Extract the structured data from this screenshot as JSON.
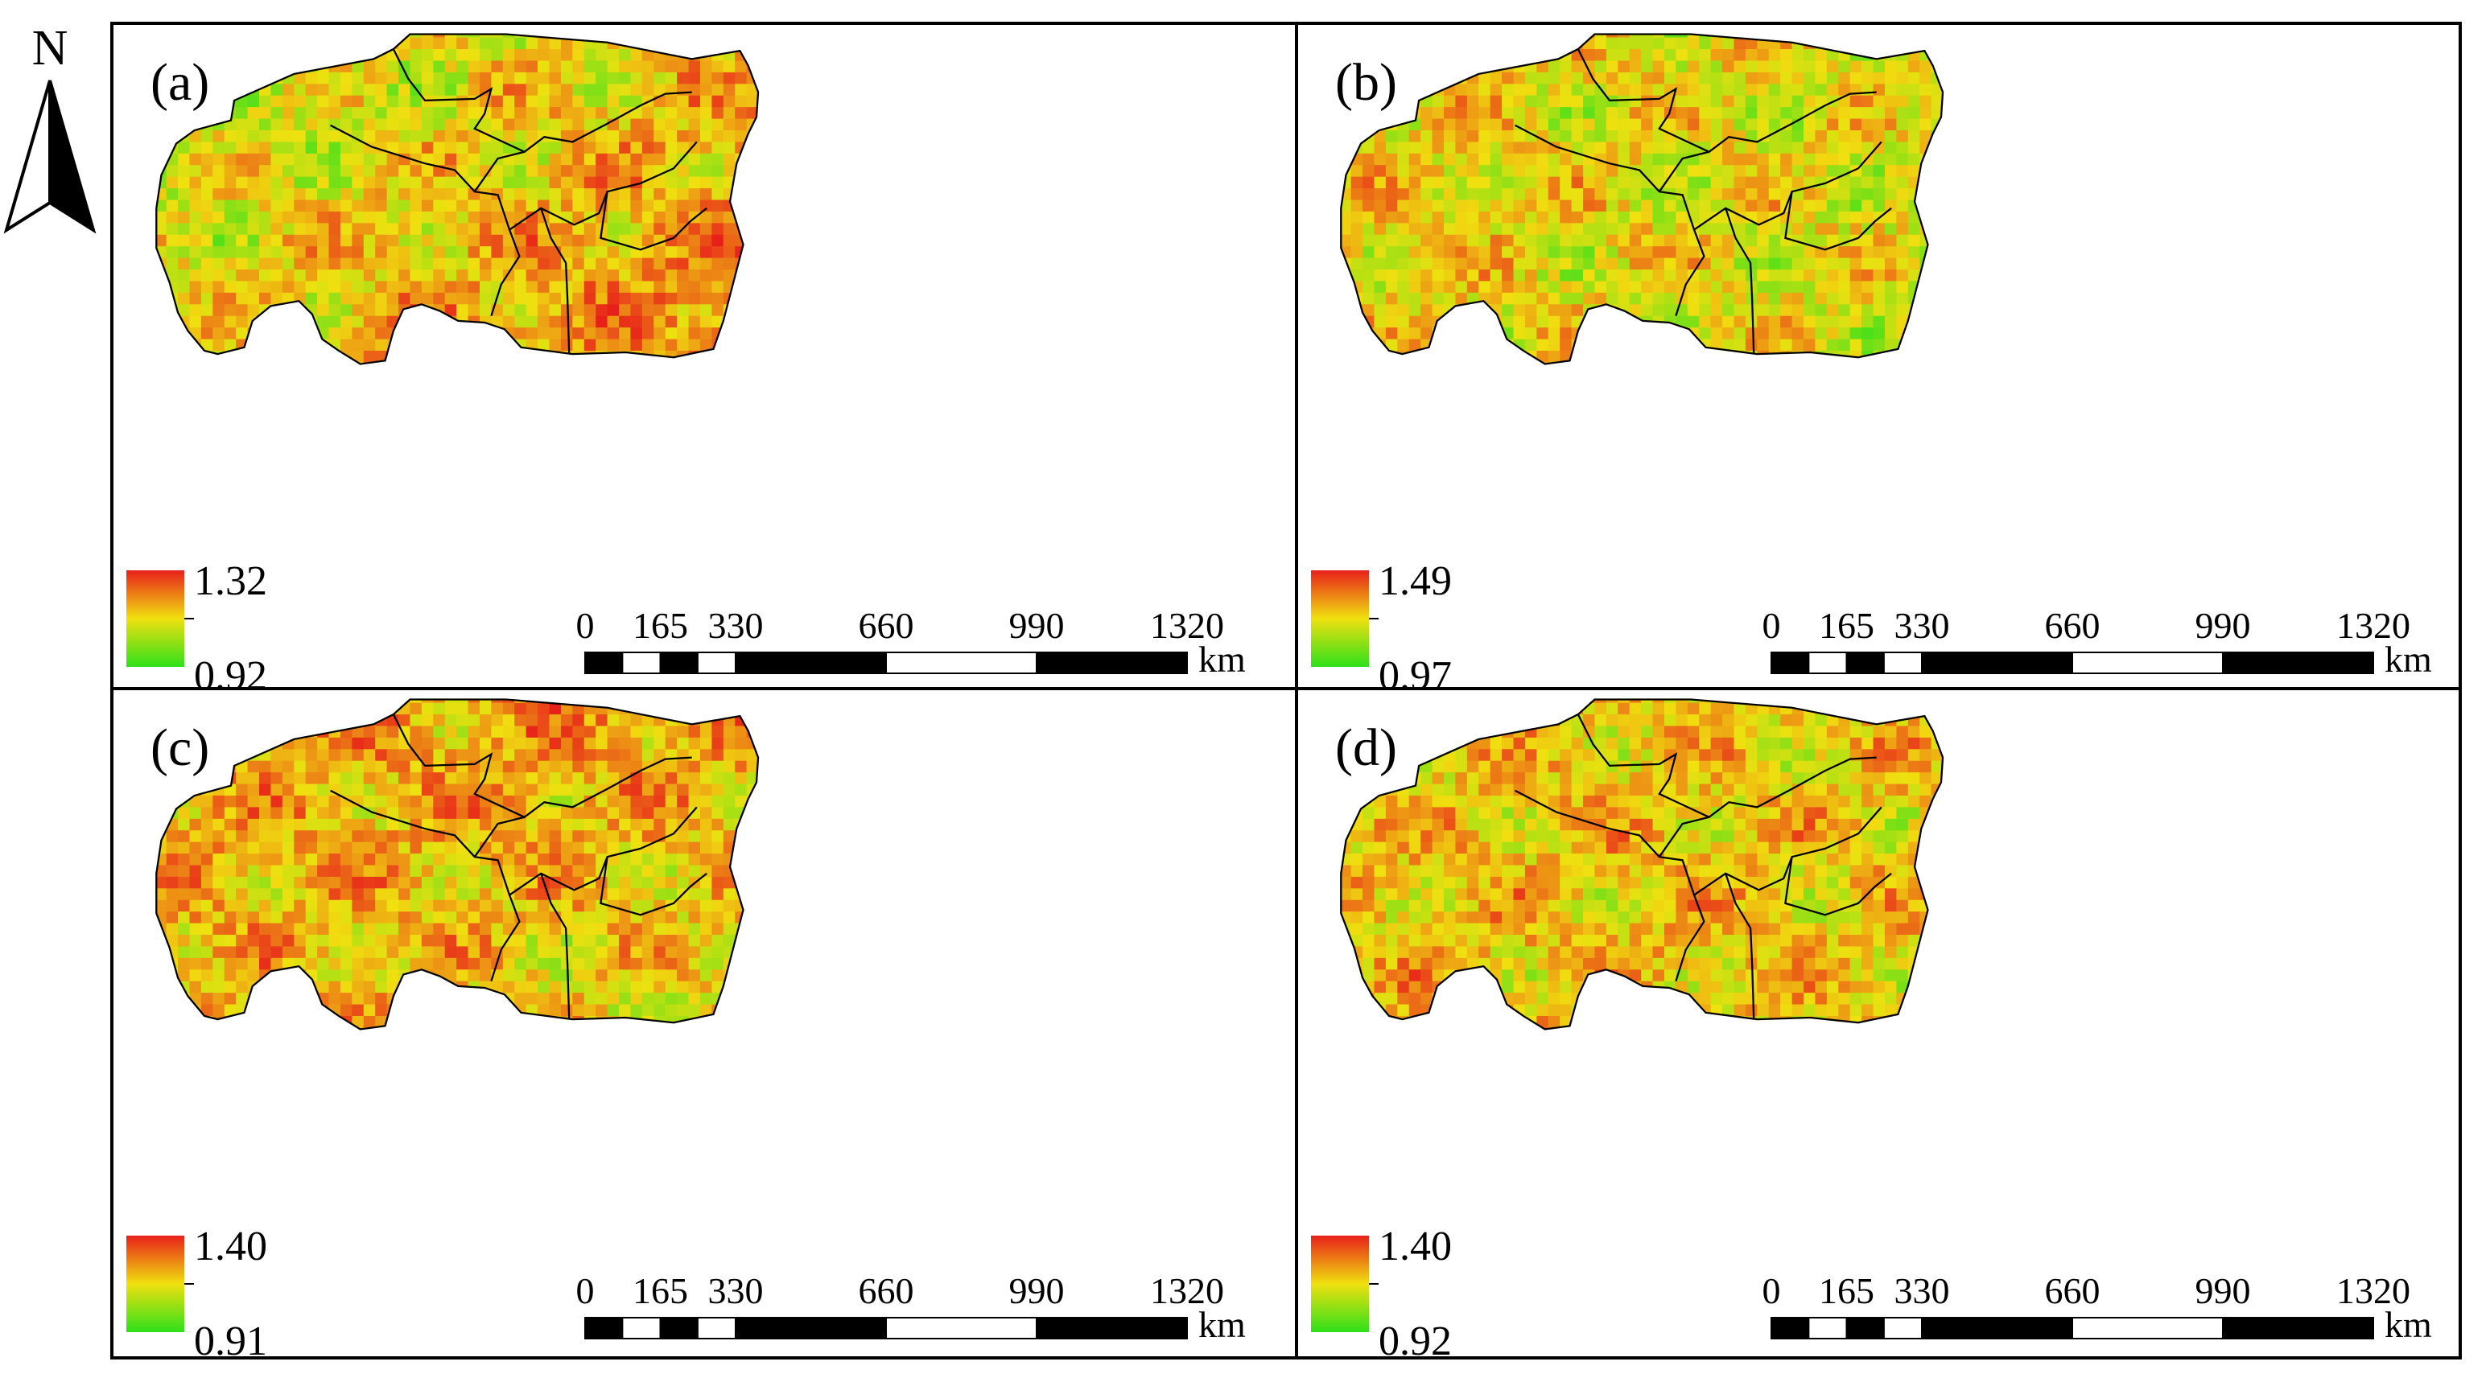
{
  "north_arrow": {
    "label": "N"
  },
  "panels": [
    {
      "id": "a",
      "label": "(a)",
      "legend": {
        "max": "1.32",
        "min": "0.92"
      },
      "scale_bar": {
        "ticks": [
          "0",
          "165",
          "330",
          "660",
          "990",
          "1320"
        ],
        "unit": "km"
      }
    },
    {
      "id": "b",
      "label": "(b)",
      "legend": {
        "max": "1.49",
        "min": "0.97"
      },
      "scale_bar": {
        "ticks": [
          "0",
          "165",
          "330",
          "660",
          "990",
          "1320"
        ],
        "unit": "km"
      }
    },
    {
      "id": "c",
      "label": "(c)",
      "legend": {
        "max": "1.40",
        "min": "0.91"
      },
      "scale_bar": {
        "ticks": [
          "0",
          "165",
          "330",
          "660",
          "990",
          "1320"
        ],
        "unit": "km"
      }
    },
    {
      "id": "d",
      "label": "(d)",
      "legend": {
        "max": "1.40",
        "min": "0.92"
      },
      "scale_bar": {
        "ticks": [
          "0",
          "165",
          "330",
          "660",
          "990",
          "1320"
        ],
        "unit": "km"
      }
    }
  ],
  "colors": {
    "high": "#e8201a",
    "mid": "#f0e010",
    "low": "#2ee01a",
    "border": "#000000"
  }
}
